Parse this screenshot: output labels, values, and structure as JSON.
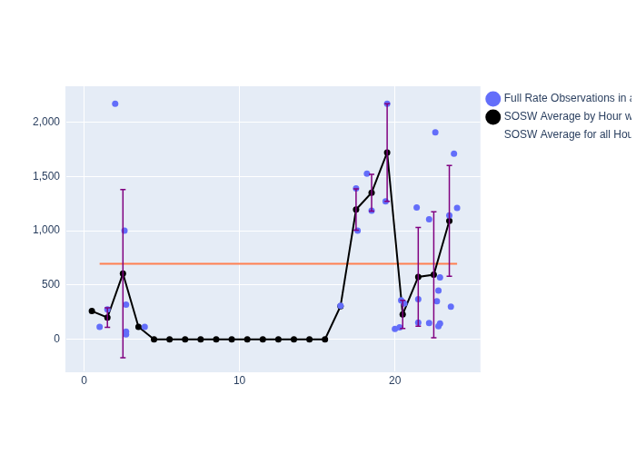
{
  "chart_data": {
    "type": "scatter",
    "xlim": [
      -1.2,
      25.5
    ],
    "xticks": [
      0,
      10,
      20
    ],
    "ylim": [
      -300,
      2330
    ],
    "yticks": [
      0,
      500,
      1000,
      1500,
      2000
    ],
    "grid": true,
    "legend": "right",
    "series": [
      {
        "name": "Full Rate Observations in a Normal Point",
        "type": "scatter",
        "color": "#636efa",
        "marker": "circle",
        "x": [
          1.0,
          1.5,
          2.0,
          2.6,
          2.7,
          2.7,
          2.7,
          3.9,
          16.5,
          17.5,
          17.6,
          18.2,
          18.5,
          19.4,
          19.5,
          20.0,
          20.3,
          20.4,
          20.6,
          21.4,
          21.5,
          21.5,
          22.2,
          22.2,
          22.6,
          22.7,
          22.8,
          22.8,
          22.9,
          22.9,
          23.5,
          23.6,
          23.8,
          24.0
        ],
        "values": [
          115,
          275,
          2170,
          1000,
          320,
          70,
          45,
          115,
          310,
          1390,
          1000,
          1525,
          1185,
          1270,
          2170,
          95,
          110,
          360,
          330,
          1215,
          370,
          155,
          1105,
          150,
          1905,
          350,
          120,
          450,
          145,
          570,
          1140,
          300,
          1710,
          1210
        ]
      },
      {
        "name": "SOSW Average by Hour with STD",
        "type": "line",
        "color": "#000000",
        "marker": "circle",
        "x": [
          0.5,
          1.5,
          2.5,
          3.5,
          4.5,
          5.5,
          6.5,
          7.5,
          8.5,
          9.5,
          10.5,
          11.5,
          12.5,
          13.5,
          14.5,
          15.5,
          16.5,
          17.5,
          18.5,
          19.5,
          20.5,
          21.5,
          22.5,
          23.5
        ],
        "values": [
          260,
          200,
          605,
          115,
          0,
          0,
          0,
          0,
          0,
          0,
          0,
          0,
          0,
          0,
          0,
          0,
          305,
          1195,
          1350,
          1720,
          230,
          575,
          595,
          1090
        ],
        "error": [
          0,
          90,
          775,
          0,
          0,
          0,
          0,
          0,
          0,
          0,
          0,
          0,
          0,
          0,
          0,
          0,
          0,
          190,
          170,
          450,
          130,
          455,
          580,
          510
        ],
        "error_color": "#800080"
      },
      {
        "name": "SOSW Average for all Hours",
        "type": "line",
        "color": "#ff7f50",
        "marker": "none",
        "x": [
          1,
          24
        ],
        "values": [
          695,
          695
        ]
      }
    ]
  }
}
